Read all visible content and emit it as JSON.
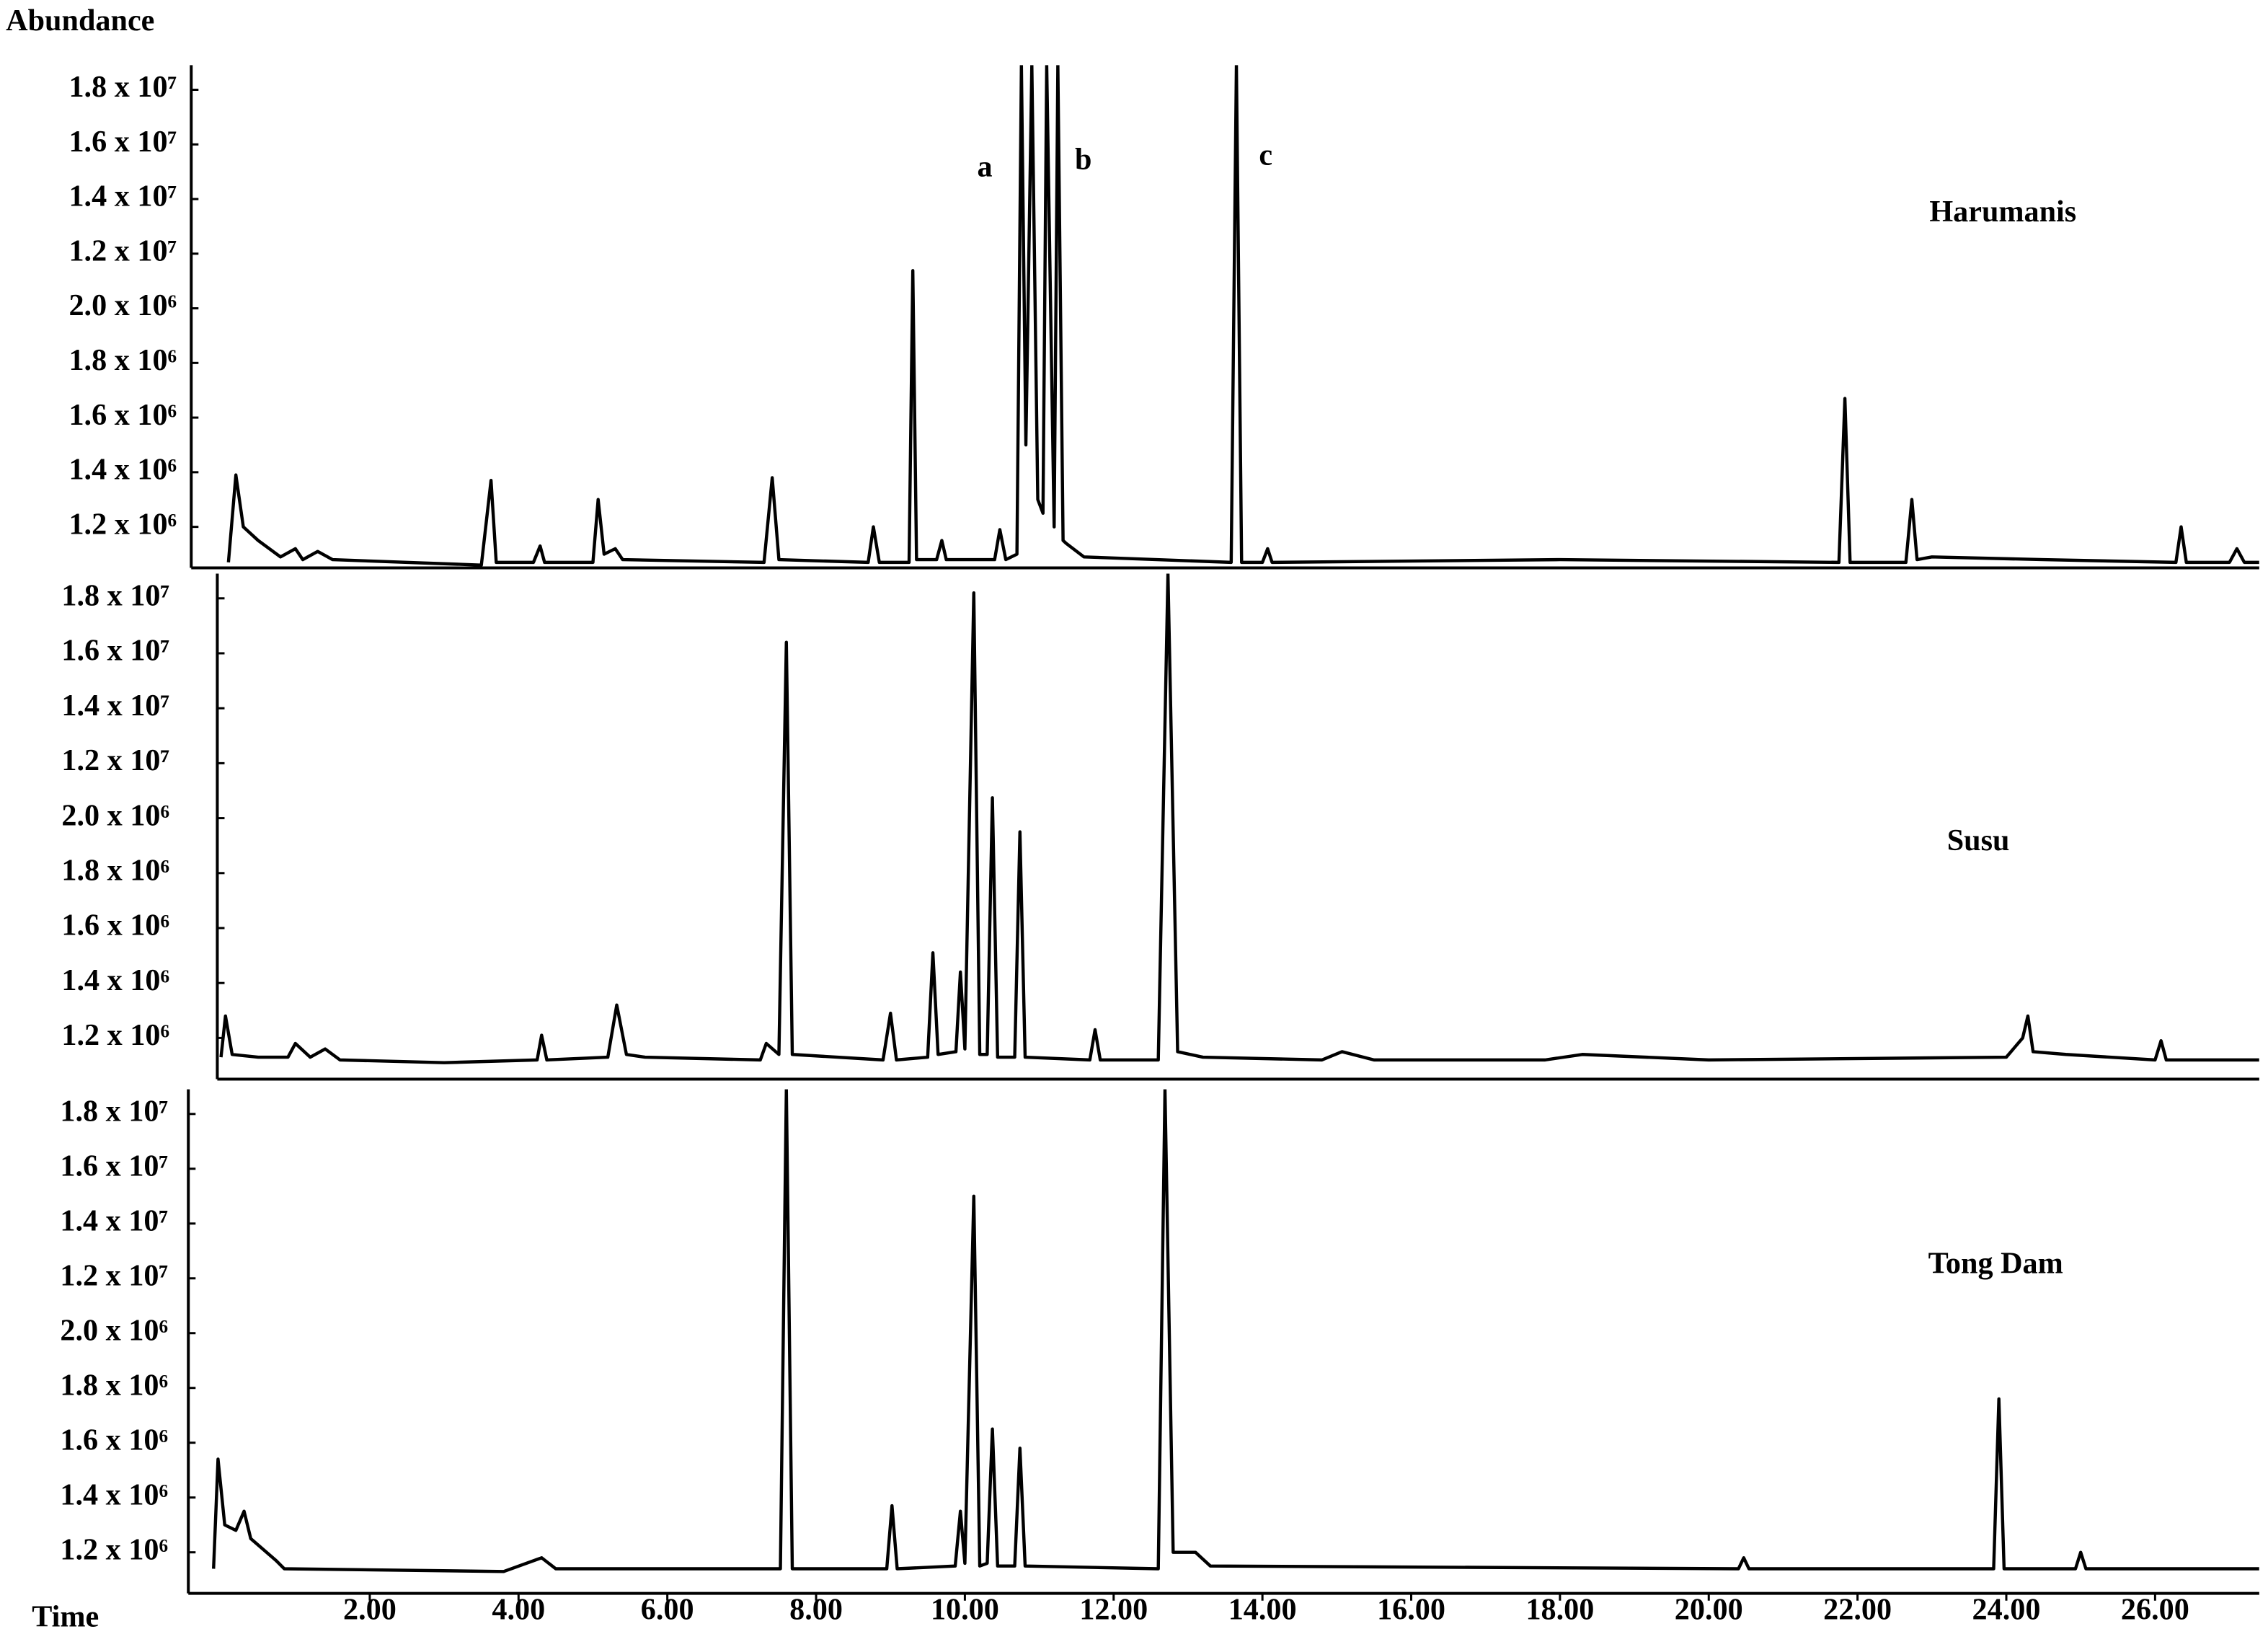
{
  "chart_data": [
    {
      "type": "line",
      "title": "Harumanis",
      "y_label": "Abundance",
      "annotations": [
        "a",
        "b",
        "c"
      ],
      "x": [
        0.1,
        0.2,
        0.3,
        0.5,
        0.8,
        1.0,
        1.1,
        1.3,
        1.5,
        3.5,
        3.63,
        3.7,
        4.2,
        4.29,
        4.35,
        5.0,
        5.07,
        5.15,
        5.3,
        5.4,
        7.3,
        7.41,
        7.5,
        8.7,
        8.77,
        8.85,
        9.25,
        9.3,
        9.35,
        9.62,
        9.69,
        9.75,
        10.4,
        10.47,
        10.55,
        10.7,
        10.76,
        10.82,
        10.9,
        10.98,
        11.05,
        11.1,
        11.2,
        11.25,
        11.32,
        11.36,
        11.6,
        13.58,
        13.65,
        13.72,
        14.0,
        14.07,
        14.13,
        18.0,
        21.75,
        21.83,
        21.9,
        22.65,
        22.73,
        22.8,
        23.0,
        24.5,
        26.28,
        26.35,
        26.42,
        27.0,
        27.1,
        27.2,
        27.4
      ],
      "series": [
        {
          "color": "#000000",
          "values": [
            1070000,
            1390000,
            1200000,
            1150000,
            1090000,
            1120000,
            1080000,
            1110000,
            1080000,
            1060000,
            1370000,
            1070000,
            1070000,
            1130000,
            1070000,
            1070000,
            1300000,
            1100000,
            1120000,
            1080000,
            1070000,
            1380000,
            1080000,
            1070000,
            1200000,
            1070000,
            1070000,
            8900000,
            1080000,
            1080000,
            1150000,
            1080000,
            1080000,
            1190000,
            1080000,
            1100000,
            18900000,
            1500000,
            18900000,
            1300000,
            1250000,
            18900000,
            1200000,
            18900000,
            1150000,
            1140000,
            1090000,
            1070000,
            18900000,
            1070000,
            1070000,
            1120000,
            1070000,
            1080000,
            1070000,
            1670000,
            1070000,
            1070000,
            1300000,
            1080000,
            1090000,
            1080000,
            1070000,
            1200000,
            1070000,
            1070000,
            1120000,
            1070000,
            1070000
          ]
        }
      ],
      "xlim": [
        -0.4,
        27.4
      ],
      "ylim": [
        1050000,
        18900000
      ],
      "yticks": [
        {
          "value": 1200000,
          "label": "1.2 x 10⁶"
        },
        {
          "value": 1400000,
          "label": "1.4 x 10⁶"
        },
        {
          "value": 1600000,
          "label": "1.6 x 10⁶"
        },
        {
          "value": 1800000,
          "label": "1.8 x 10⁶"
        },
        {
          "value": 2000000,
          "label": "2.0 x 10⁶"
        },
        {
          "value": 12000000,
          "label": "1.2 x 10⁷"
        },
        {
          "value": 14000000,
          "label": "1.4 x 10⁷"
        },
        {
          "value": 16000000,
          "label": "1.6 x 10⁷"
        },
        {
          "value": 18000000,
          "label": "1.8 x 10⁷"
        }
      ]
    },
    {
      "type": "line",
      "title": "Susu",
      "x": [
        0.0,
        0.06,
        0.15,
        0.5,
        0.9,
        1.0,
        1.2,
        1.4,
        1.6,
        3.0,
        4.25,
        4.31,
        4.38,
        5.2,
        5.32,
        5.45,
        5.7,
        7.25,
        7.33,
        7.5,
        7.6,
        7.68,
        8.9,
        9.0,
        9.08,
        9.5,
        9.57,
        9.64,
        9.88,
        9.94,
        10.0,
        10.12,
        10.2,
        10.3,
        10.37,
        10.44,
        10.67,
        10.74,
        10.81,
        11.68,
        11.75,
        11.82,
        12.6,
        12.73,
        12.86,
        13.2,
        14.8,
        15.07,
        15.5,
        17.8,
        18.3,
        20.0,
        24.0,
        24.22,
        24.29,
        24.36,
        24.8,
        26.0,
        26.08,
        26.15,
        27.4
      ],
      "series": [
        {
          "color": "#000000",
          "values": [
            1130000,
            1280000,
            1140000,
            1130000,
            1130000,
            1180000,
            1130000,
            1160000,
            1120000,
            1110000,
            1120000,
            1210000,
            1120000,
            1130000,
            1320000,
            1140000,
            1130000,
            1120000,
            1180000,
            1140000,
            16400000,
            1140000,
            1120000,
            1290000,
            1120000,
            1130000,
            1510000,
            1140000,
            1150000,
            1440000,
            1160000,
            18200000,
            1140000,
            1140000,
            5700000,
            1130000,
            1130000,
            1950000,
            1130000,
            1120000,
            1230000,
            1120000,
            1120000,
            18900000,
            1150000,
            1130000,
            1120000,
            1150000,
            1120000,
            1120000,
            1140000,
            1120000,
            1130000,
            1200000,
            1280000,
            1150000,
            1140000,
            1120000,
            1190000,
            1120000,
            1120000
          ]
        }
      ],
      "xlim": [
        -0.4,
        27.4
      ],
      "ylim": [
        1050000,
        18900000
      ],
      "yticks": [
        {
          "value": 1200000,
          "label": "1.2 x 10⁶"
        },
        {
          "value": 1400000,
          "label": "1.4 x 10⁶"
        },
        {
          "value": 1600000,
          "label": "1.6 x 10⁶"
        },
        {
          "value": 1800000,
          "label": "1.8 x 10⁶"
        },
        {
          "value": 2000000,
          "label": "2.0 x 10⁶"
        },
        {
          "value": 12000000,
          "label": "1.2 x 10⁷"
        },
        {
          "value": 14000000,
          "label": "1.4 x 10⁷"
        },
        {
          "value": 16000000,
          "label": "1.6 x 10⁷"
        },
        {
          "value": 18000000,
          "label": "1.8 x 10⁷"
        }
      ]
    },
    {
      "type": "line",
      "title": "Tong Dam",
      "x_label": "Time",
      "x": [
        -0.1,
        -0.04,
        0.05,
        0.2,
        0.31,
        0.4,
        0.74,
        0.85,
        3.8,
        4.31,
        4.5,
        7.52,
        7.6,
        7.68,
        8.95,
        9.02,
        9.09,
        9.87,
        9.94,
        10.0,
        10.12,
        10.2,
        10.3,
        10.37,
        10.44,
        10.67,
        10.74,
        10.81,
        12.6,
        12.69,
        12.8,
        13.1,
        13.3,
        20.4,
        20.47,
        20.54,
        23.83,
        23.9,
        23.97,
        24.93,
        25.0,
        25.07,
        27.4
      ],
      "series": [
        {
          "color": "#000000",
          "values": [
            1140000,
            1540000,
            1300000,
            1280000,
            1350000,
            1250000,
            1170000,
            1140000,
            1130000,
            1180000,
            1140000,
            1140000,
            18900000,
            1140000,
            1140000,
            1370000,
            1140000,
            1150000,
            1350000,
            1160000,
            15000000,
            1150000,
            1160000,
            1650000,
            1150000,
            1150000,
            1580000,
            1150000,
            1140000,
            18900000,
            1200000,
            1200000,
            1150000,
            1140000,
            1180000,
            1140000,
            1140000,
            1760000,
            1140000,
            1140000,
            1200000,
            1140000,
            1140000
          ]
        }
      ],
      "xlim": [
        -0.4,
        27.4
      ],
      "ylim": [
        1050000,
        18900000
      ],
      "xticks": [
        {
          "value": 2,
          "label": "2.00"
        },
        {
          "value": 4,
          "label": "4.00"
        },
        {
          "value": 6,
          "label": "6.00"
        },
        {
          "value": 8,
          "label": "8.00"
        },
        {
          "value": 10,
          "label": "10.00"
        },
        {
          "value": 12,
          "label": "12.00"
        },
        {
          "value": 14,
          "label": "14.00"
        },
        {
          "value": 16,
          "label": "16.00"
        },
        {
          "value": 18,
          "label": "18.00"
        },
        {
          "value": 20,
          "label": "20.00"
        },
        {
          "value": 22,
          "label": "22.00"
        },
        {
          "value": 24,
          "label": "24.00"
        },
        {
          "value": 26,
          "label": "26.00"
        }
      ],
      "yticks": [
        {
          "value": 1200000,
          "label": "1.2 x 10⁶"
        },
        {
          "value": 1400000,
          "label": "1.4 x 10⁶"
        },
        {
          "value": 1600000,
          "label": "1.6 x 10⁶"
        },
        {
          "value": 1800000,
          "label": "1.8 x 10⁶"
        },
        {
          "value": 2000000,
          "label": "2.0 x 10⁶"
        },
        {
          "value": 12000000,
          "label": "1.2 x 10⁷"
        },
        {
          "value": 14000000,
          "label": "1.4 x 10⁷"
        },
        {
          "value": 16000000,
          "label": "1.6 x 10⁷"
        },
        {
          "value": 18000000,
          "label": "1.8 x 10⁷"
        }
      ]
    }
  ]
}
